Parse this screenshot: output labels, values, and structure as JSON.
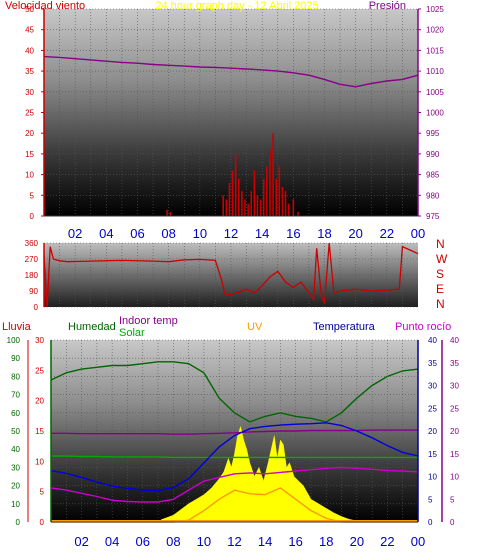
{
  "title": "24 hour graph day - 12 Abril 2025",
  "colors": {
    "wind": "#cc0000",
    "pressure": "#880088",
    "humidity": "#006600",
    "solar": "#00aa00",
    "uv": "#ff9900",
    "temperature": "#000099",
    "dewpoint": "#cc00cc",
    "rain": "#cc0000",
    "solar_fill": "#ffff00",
    "title": "#ffff00",
    "hours": "#0000cc"
  },
  "hour_labels": [
    "02",
    "04",
    "06",
    "08",
    "10",
    "12",
    "14",
    "16",
    "18",
    "20",
    "22",
    "00"
  ],
  "chart_data": [
    {
      "type": "line",
      "name": "wind-pressure",
      "left_axis_label": "Velocidad viento",
      "right_axis_label": "Presión",
      "left_ticks": [
        "0",
        "5",
        "10",
        "15",
        "20",
        "25",
        "30",
        "35",
        "40",
        "45",
        "50"
      ],
      "right_ticks": [
        "975",
        "980",
        "985",
        "990",
        "995",
        "1000",
        "1005",
        "1010",
        "1015",
        "1020",
        "1025"
      ],
      "ylim_left": [
        0,
        50
      ],
      "ylim_right": [
        975,
        1025
      ],
      "x_hours": [
        0,
        1,
        2,
        3,
        4,
        5,
        6,
        7,
        8,
        9,
        10,
        11,
        12,
        13,
        14,
        15,
        16,
        17,
        18,
        19,
        20,
        21,
        22,
        23,
        24
      ],
      "series": [
        {
          "key": "pressure",
          "axis": "right",
          "values": [
            1013.5,
            1013.3,
            1013.0,
            1012.7,
            1012.4,
            1012.1,
            1011.9,
            1011.6,
            1011.4,
            1011.2,
            1011.0,
            1010.9,
            1010.7,
            1010.5,
            1010.3,
            1010.0,
            1009.6,
            1009.0,
            1008.0,
            1006.8,
            1006.2,
            1007.0,
            1007.6,
            1008.0,
            1009.0
          ]
        },
        {
          "key": "wind",
          "axis": "left",
          "bars_hours": [
            7.9,
            8.1,
            11.5,
            11.7,
            11.9,
            12.1,
            12.3,
            12.5,
            12.7,
            12.9,
            13.1,
            13.3,
            13.5,
            13.7,
            13.9,
            14.1,
            14.3,
            14.5,
            14.7,
            14.9,
            15.1,
            15.3,
            15.5,
            15.7,
            16.0,
            16.3
          ],
          "bars_values": [
            1.5,
            1,
            5,
            4,
            8,
            11,
            15,
            9,
            6,
            4,
            3,
            6,
            11,
            5,
            4,
            9,
            12,
            16,
            20,
            9,
            12,
            7,
            6,
            3,
            4,
            1
          ]
        }
      ]
    },
    {
      "type": "line",
      "name": "wind-direction",
      "left_ticks": [
        "0",
        "90",
        "180",
        "270",
        "360"
      ],
      "right_labels": [
        "N",
        "W",
        "S",
        "E",
        "N"
      ],
      "ylim": [
        0,
        360
      ],
      "x_hours": [
        0,
        0.2,
        0.4,
        0.6,
        1,
        1.5,
        3,
        5,
        7,
        8,
        9,
        10,
        11,
        11.4,
        11.6,
        12,
        12.5,
        13,
        13.5,
        14,
        14.5,
        15,
        15.5,
        16,
        16.5,
        17,
        17.3,
        17.5,
        17.8,
        18,
        18.3,
        18.6,
        19,
        20,
        21,
        22,
        22.8,
        23,
        23.5,
        24
      ],
      "values": [
        290,
        0,
        340,
        270,
        260,
        255,
        258,
        262,
        258,
        255,
        265,
        268,
        262,
        150,
        75,
        70,
        85,
        100,
        80,
        120,
        170,
        200,
        140,
        110,
        140,
        80,
        40,
        330,
        60,
        20,
        360,
        80,
        90,
        100,
        90,
        95,
        100,
        340,
        320,
        300
      ]
    },
    {
      "type": "line",
      "name": "weather-multi",
      "labels": {
        "rain": "Lluvia",
        "humidity": "Humedad",
        "indoor": "Indoor temp",
        "solar": "Solar",
        "uv": "UV",
        "temperature": "Temperatura",
        "dewpoint": "Punto rocío"
      },
      "humidity_ticks": [
        "0",
        "10",
        "20",
        "30",
        "40",
        "50",
        "60",
        "70",
        "80",
        "90",
        "100"
      ],
      "rain_ticks": [
        "0",
        "5",
        "10",
        "15",
        "20",
        "25",
        "30"
      ],
      "temp_ticks": [
        "0",
        "5",
        "10",
        "15",
        "20",
        "25",
        "30",
        "35",
        "40"
      ],
      "dew_ticks": [
        "0",
        "5",
        "10",
        "15",
        "20",
        "25",
        "30",
        "35",
        "40"
      ],
      "x_hours": [
        0,
        1,
        2,
        3,
        4,
        5,
        6,
        7,
        8,
        9,
        10,
        11,
        12,
        13,
        14,
        15,
        16,
        17,
        18,
        19,
        20,
        21,
        22,
        23,
        24
      ],
      "series": [
        {
          "key": "humidity",
          "axis": "humidity",
          "values": [
            78,
            82,
            84,
            85,
            86,
            86,
            87,
            88,
            88,
            87,
            82,
            68,
            60,
            55,
            58,
            60,
            58,
            57,
            55,
            60,
            68,
            75,
            80,
            83,
            84
          ]
        },
        {
          "key": "indoor",
          "axis": "temp",
          "values": [
            19.5,
            19.5,
            19.4,
            19.4,
            19.4,
            19.4,
            19.4,
            19.4,
            19.3,
            19.3,
            19.4,
            19.5,
            19.6,
            19.8,
            19.9,
            20.0,
            20.0,
            20.1,
            20.1,
            20.1,
            20.1,
            20.2,
            20.2,
            20.2,
            20.2
          ]
        },
        {
          "key": "solar",
          "axis": "temp",
          "values": [
            14.5,
            14.5,
            14.4,
            14.4,
            14.3,
            14.3,
            14.3,
            14.3,
            14.2,
            14.2,
            14.2,
            14.2,
            14.2,
            14.2,
            14.2,
            14.2,
            14.2,
            14.2,
            14.2,
            14.2,
            14.2,
            14.2,
            14.2,
            14.2,
            14.2
          ]
        },
        {
          "key": "temperature",
          "axis": "temp",
          "values": [
            11.3,
            10.7,
            9.8,
            8.8,
            7.9,
            7.4,
            7.0,
            6.9,
            7.6,
            9.5,
            13.0,
            16.5,
            19.0,
            20.5,
            21.0,
            21.3,
            21.5,
            21.6,
            21.8,
            21.2,
            20.0,
            18.5,
            16.8,
            15.3,
            14.5
          ]
        },
        {
          "key": "dewpoint",
          "axis": "temp",
          "values": [
            7.5,
            7.0,
            6.3,
            5.6,
            4.8,
            4.5,
            4.4,
            4.4,
            5.0,
            7.0,
            9.0,
            9.8,
            10.6,
            10.8,
            10.6,
            10.9,
            11.2,
            11.5,
            11.8,
            12.0,
            11.8,
            11.6,
            11.3,
            11.2,
            11.0
          ]
        },
        {
          "key": "uv",
          "axis": "temp",
          "values": [
            0,
            0,
            0,
            0,
            0,
            0,
            0,
            0,
            0,
            0.4,
            2.5,
            5.0,
            7.0,
            6.2,
            6.0,
            7.5,
            5.0,
            2.5,
            0.8,
            0,
            0,
            0,
            0,
            0,
            0
          ]
        }
      ],
      "solar_fill_hours": [
        7.2,
        8,
        9,
        10,
        10.5,
        11,
        11.3,
        11.6,
        11.8,
        12,
        12.2,
        12.4,
        12.6,
        12.8,
        13,
        13.3,
        13.6,
        13.9,
        14.2,
        14.4,
        14.6,
        14.8,
        15,
        15.2,
        15.4,
        15.6,
        15.9,
        16.2,
        16.5,
        17,
        17.5,
        18,
        18.5,
        19,
        19.5,
        19.9
      ],
      "solar_fill_values": [
        0.5,
        1.5,
        4,
        6,
        7.5,
        9.5,
        11,
        14,
        12,
        15,
        19,
        21,
        18,
        16,
        13,
        10,
        12,
        9,
        13,
        16,
        19,
        14,
        18,
        17,
        12,
        13,
        10,
        9,
        8,
        5,
        4,
        3,
        2,
        1.2,
        0.6,
        0.3
      ]
    }
  ]
}
